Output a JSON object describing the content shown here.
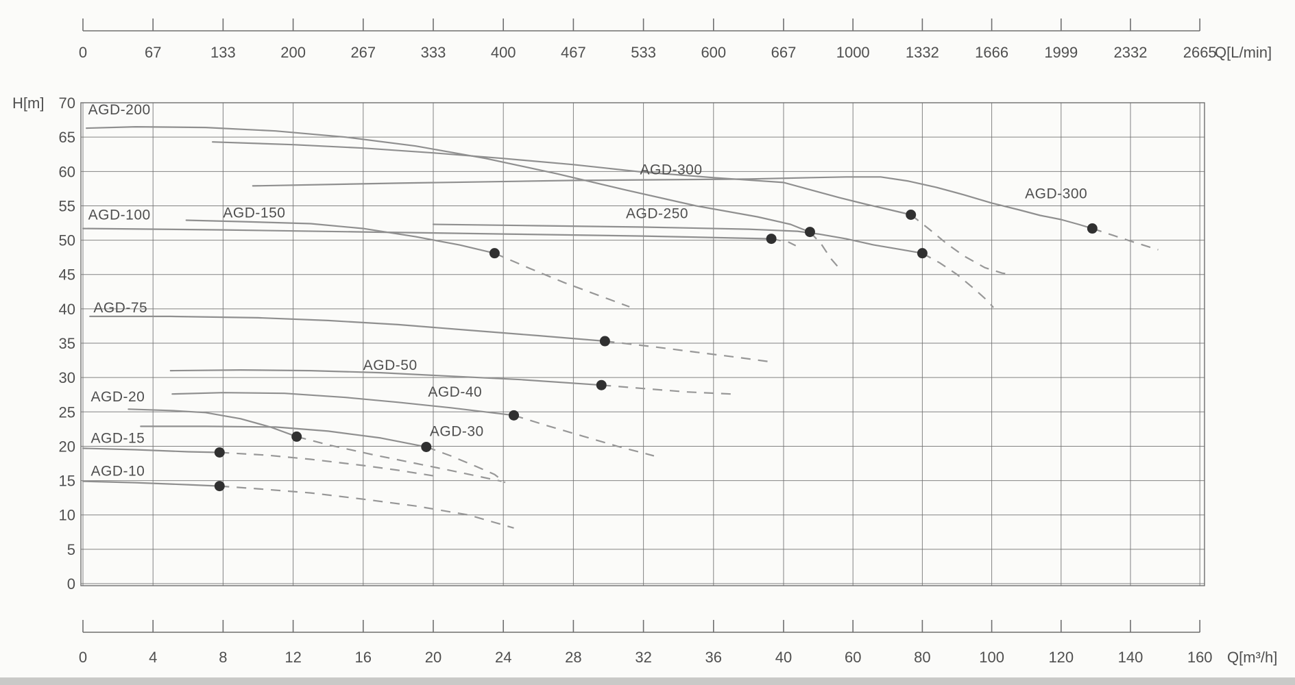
{
  "y_axis": {
    "unit": "H[m]",
    "ticks": [
      70,
      65,
      60,
      55,
      50,
      45,
      40,
      35,
      30,
      25,
      20,
      15,
      10,
      5,
      0
    ],
    "min": 0,
    "max": 70
  },
  "top_axis": {
    "unit": "Q[L/min]",
    "labels": [
      "0",
      "67",
      "133",
      "200",
      "267",
      "333",
      "400",
      "467",
      "533",
      "600",
      "667",
      "1000",
      "1332",
      "1666",
      "1999",
      "2332",
      "2665"
    ]
  },
  "bottom_axis": {
    "unit": "Q[m³/h]",
    "ticks": [
      0,
      4,
      8,
      12,
      16,
      20,
      24,
      28,
      32,
      36,
      40,
      60,
      80,
      100,
      120,
      140,
      160
    ]
  },
  "chart_data": {
    "type": "line",
    "title": "",
    "xlabel": "Q[m³/h] (bottom scale) / Q[L/min] (top scale)",
    "ylabel": "H[m]",
    "ylim": [
      0,
      70
    ],
    "grid": true,
    "x_scale_note": "piecewise linear flow axis: 0-40 m3/h expanded (ticks every 4), 40-160 m3/h compressed (ticks every 20); uniform tick spacing",
    "line_style_note": "solid = normal operating range, filled dot = rated duty point, dashed = extended/overload range",
    "series": [
      {
        "name": "AGD-10",
        "label": "AGD-10",
        "label_anchor": [
          0.45,
          16.4
        ],
        "solid": [
          [
            0,
            14.9
          ],
          [
            3,
            14.7
          ],
          [
            6,
            14.4
          ],
          [
            7.8,
            14.2
          ]
        ],
        "dot": [
          7.8,
          14.2
        ],
        "dashed": [
          [
            7.8,
            14.2
          ],
          [
            10,
            13.8
          ],
          [
            13,
            13.2
          ],
          [
            16,
            12.3
          ],
          [
            19,
            11.3
          ],
          [
            22,
            10.0
          ],
          [
            24.6,
            8.1
          ]
        ]
      },
      {
        "name": "AGD-15",
        "label": "AGD-15",
        "label_anchor": [
          0.45,
          21.2
        ],
        "solid": [
          [
            0,
            19.7
          ],
          [
            3,
            19.5
          ],
          [
            6,
            19.2
          ],
          [
            7.8,
            19.1
          ]
        ],
        "dot": [
          7.8,
          19.1
        ],
        "dashed": [
          [
            7.8,
            19.1
          ],
          [
            10.5,
            18.7
          ],
          [
            13,
            18.1
          ],
          [
            16,
            17.2
          ],
          [
            18,
            16.5
          ],
          [
            20,
            15.7
          ]
        ]
      },
      {
        "name": "AGD-20",
        "label": "AGD-20",
        "label_anchor": [
          0.45,
          27.2
        ],
        "solid": [
          [
            2.6,
            25.4
          ],
          [
            5,
            25.2
          ],
          [
            7,
            24.9
          ],
          [
            9,
            24.0
          ],
          [
            10.7,
            22.8
          ],
          [
            12.2,
            21.4
          ]
        ],
        "dot": [
          12.2,
          21.4
        ],
        "dashed": [
          [
            12.2,
            21.4
          ],
          [
            14,
            20.2
          ],
          [
            16.5,
            18.8
          ],
          [
            19,
            17.5
          ],
          [
            21.5,
            16.2
          ],
          [
            23.9,
            14.9
          ]
        ]
      },
      {
        "name": "AGD-30",
        "label": "AGD-30",
        "label_anchor": [
          19.8,
          22.2
        ],
        "solid": [
          [
            3.3,
            22.9
          ],
          [
            7,
            22.9
          ],
          [
            11,
            22.8
          ],
          [
            14,
            22.2
          ],
          [
            17,
            21.2
          ],
          [
            19.6,
            19.9
          ]
        ],
        "dot": [
          19.6,
          19.9
        ],
        "dashed": [
          [
            19.6,
            19.9
          ],
          [
            21,
            18.6
          ],
          [
            22.5,
            17.0
          ],
          [
            23.5,
            15.9
          ],
          [
            24.1,
            14.7
          ]
        ]
      },
      {
        "name": "AGD-40",
        "label": "AGD-40",
        "label_anchor": [
          19.7,
          27.9
        ],
        "solid": [
          [
            5.1,
            27.6
          ],
          [
            8,
            27.8
          ],
          [
            11.5,
            27.7
          ],
          [
            15,
            27.1
          ],
          [
            18,
            26.4
          ],
          [
            21,
            25.6
          ],
          [
            24.6,
            24.5
          ]
        ],
        "dot": [
          24.6,
          24.5
        ],
        "dashed": [
          [
            24.6,
            24.5
          ],
          [
            26.5,
            23.0
          ],
          [
            28.5,
            21.5
          ],
          [
            30.5,
            20.0
          ],
          [
            32.6,
            18.6
          ]
        ]
      },
      {
        "name": "AGD-50",
        "label": "AGD-50",
        "label_anchor": [
          16.0,
          31.8
        ],
        "solid": [
          [
            5,
            31.0
          ],
          [
            9,
            31.1
          ],
          [
            13,
            31.0
          ],
          [
            17,
            30.7
          ],
          [
            21,
            30.2
          ],
          [
            25,
            29.7
          ],
          [
            29.6,
            28.9
          ]
        ],
        "dot": [
          29.6,
          28.9
        ],
        "dashed": [
          [
            29.6,
            28.9
          ],
          [
            32,
            28.4
          ],
          [
            34.5,
            27.9
          ],
          [
            37,
            27.6
          ]
        ]
      },
      {
        "name": "AGD-75",
        "label": "AGD-75",
        "label_anchor": [
          0.6,
          40.2
        ],
        "solid": [
          [
            0.4,
            38.9
          ],
          [
            5,
            38.9
          ],
          [
            10,
            38.7
          ],
          [
            14,
            38.3
          ],
          [
            18,
            37.7
          ],
          [
            22,
            36.9
          ],
          [
            26,
            36.1
          ],
          [
            29.8,
            35.3
          ]
        ],
        "dot": [
          29.8,
          35.3
        ],
        "dashed": [
          [
            29.8,
            35.3
          ],
          [
            32.5,
            34.5
          ],
          [
            35,
            33.7
          ],
          [
            37.5,
            32.9
          ],
          [
            39.5,
            32.2
          ]
        ]
      },
      {
        "name": "AGD-100",
        "label": "AGD-100",
        "label_anchor": [
          0.3,
          53.7
        ],
        "solid": [
          [
            0,
            51.7
          ],
          [
            8,
            51.5
          ],
          [
            16,
            51.2
          ],
          [
            24,
            50.9
          ],
          [
            32,
            50.6
          ],
          [
            39.3,
            50.2
          ]
        ],
        "dot": [
          39.3,
          50.2
        ],
        "dashed": [
          [
            39.3,
            50.2
          ],
          [
            41.5,
            49.7
          ],
          [
            43.5,
            49.2
          ]
        ]
      },
      {
        "name": "AGD-150",
        "label": "AGD-150",
        "label_anchor": [
          8.0,
          54.0
        ],
        "solid": [
          [
            5.9,
            52.9
          ],
          [
            9,
            52.7
          ],
          [
            13,
            52.4
          ],
          [
            16,
            51.7
          ],
          [
            19,
            50.5
          ],
          [
            21.5,
            49.3
          ],
          [
            23.5,
            48.1
          ]
        ],
        "dot": [
          23.5,
          48.1
        ],
        "dashed": [
          [
            23.5,
            48.1
          ],
          [
            25.5,
            45.9
          ],
          [
            27.5,
            43.8
          ],
          [
            29.5,
            41.9
          ],
          [
            31.2,
            40.3
          ]
        ]
      },
      {
        "name": "AGD-200",
        "label": "AGD-200",
        "label_anchor": [
          0.3,
          69.0
        ],
        "solid": [
          [
            0.2,
            66.3
          ],
          [
            3,
            66.5
          ],
          [
            7,
            66.4
          ],
          [
            11,
            65.9
          ],
          [
            15,
            65.0
          ],
          [
            19,
            63.7
          ],
          [
            23,
            61.9
          ],
          [
            27,
            59.7
          ],
          [
            31,
            57.3
          ],
          [
            35,
            55.0
          ],
          [
            38.5,
            53.4
          ],
          [
            42,
            52.3
          ],
          [
            45,
            51.7
          ],
          [
            47.6,
            51.2
          ]
        ],
        "dot": [
          47.6,
          51.2
        ],
        "dashed": [
          [
            47.6,
            51.2
          ],
          [
            50.9,
            49.4
          ],
          [
            53.5,
            47.4
          ],
          [
            56.9,
            45.4
          ]
        ]
      },
      {
        "name": "AGD-250",
        "label": "AGD-250",
        "label_anchor": [
          31.0,
          53.9
        ],
        "solid": [
          [
            20,
            52.3
          ],
          [
            26,
            52.1
          ],
          [
            32,
            51.9
          ],
          [
            38,
            51.6
          ],
          [
            44,
            51.3
          ],
          [
            50,
            50.9
          ],
          [
            58,
            50.2
          ],
          [
            66,
            49.3
          ],
          [
            73,
            48.7
          ],
          [
            80,
            48.1
          ]
        ],
        "dot": [
          80,
          48.1
        ],
        "dashed": [
          [
            80,
            48.1
          ],
          [
            85,
            46.7
          ],
          [
            90,
            45.0
          ],
          [
            95,
            42.9
          ],
          [
            98.5,
            41.3
          ],
          [
            100.5,
            40.2
          ]
        ]
      },
      {
        "name": "AGD-300",
        "label": "AGD-300",
        "label_anchor": [
          31.8,
          60.3
        ],
        "solid": [
          [
            7.4,
            64.3
          ],
          [
            12,
            63.9
          ],
          [
            16,
            63.4
          ],
          [
            20,
            62.7
          ],
          [
            24,
            61.9
          ],
          [
            28,
            61.0
          ],
          [
            32,
            59.9
          ],
          [
            36,
            59.1
          ],
          [
            40,
            58.4
          ],
          [
            48,
            57.3
          ],
          [
            56,
            56.2
          ],
          [
            64,
            55.2
          ],
          [
            70,
            54.5
          ],
          [
            76.7,
            53.7
          ]
        ],
        "dot": [
          76.7,
          53.7
        ],
        "dashed": [
          [
            76.7,
            53.7
          ],
          [
            82,
            51.6
          ],
          [
            87,
            49.5
          ],
          [
            92,
            47.7
          ],
          [
            98,
            46.0
          ],
          [
            103,
            45.2
          ],
          [
            106,
            45.0
          ]
        ]
      },
      {
        "name": "AGD-300",
        "label": "AGD-300",
        "label_anchor": [
          109.6,
          56.8
        ],
        "solid": [
          [
            9.7,
            57.9
          ],
          [
            18,
            58.3
          ],
          [
            28,
            58.7
          ],
          [
            38,
            58.9
          ],
          [
            48,
            59.1
          ],
          [
            58,
            59.2
          ],
          [
            68,
            59.2
          ],
          [
            76,
            58.6
          ],
          [
            84,
            57.7
          ],
          [
            92,
            56.6
          ],
          [
            100,
            55.4
          ],
          [
            108,
            54.4
          ],
          [
            114,
            53.6
          ],
          [
            120,
            53.0
          ],
          [
            125,
            52.3
          ],
          [
            129,
            51.7
          ]
        ],
        "dot": [
          129,
          51.7
        ],
        "dashed": [
          [
            129,
            51.7
          ],
          [
            135,
            50.7
          ],
          [
            141,
            49.7
          ],
          [
            148,
            48.6
          ]
        ]
      }
    ]
  },
  "colors": {
    "background": "#fbfbf9",
    "grid": "#6e6e6e",
    "curve": "#8f8f8f",
    "dashed_curve": "#979797",
    "dot": "#303030",
    "text": "#4f4f4f",
    "ruler": "#6e6e6e",
    "scan_band": "#c9c9c7"
  }
}
